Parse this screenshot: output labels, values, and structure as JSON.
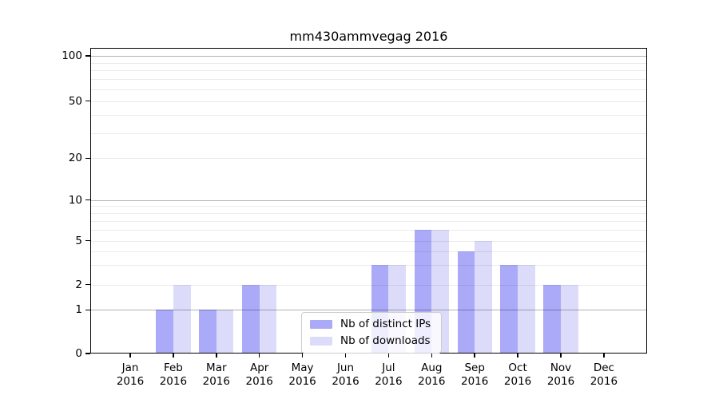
{
  "chart_data": {
    "type": "bar",
    "title": "mm430ammvegag 2016",
    "categories": [
      "Jan",
      "Feb",
      "Mar",
      "Apr",
      "May",
      "Jun",
      "Jul",
      "Aug",
      "Sep",
      "Oct",
      "Nov",
      "Dec"
    ],
    "x_tick_second_line": "2016",
    "series": [
      {
        "name": "Nb of distinct IPs",
        "color": "#aaaaf8",
        "values": [
          0,
          1,
          1,
          2,
          0,
          0,
          3,
          6,
          4,
          3,
          2,
          0
        ]
      },
      {
        "name": "Nb of downloads",
        "color": "#dcdcfa",
        "values": [
          0,
          2,
          1,
          2,
          0,
          0,
          3,
          6,
          5,
          3,
          2,
          0
        ]
      }
    ],
    "y_axis": {
      "scale": "log-like with linear 0-1 segment",
      "tick_labels": [
        "0",
        "1",
        "2",
        "5",
        "10",
        "20",
        "50",
        "100"
      ],
      "tick_values": [
        0,
        1,
        2,
        5,
        10,
        20,
        50,
        100
      ],
      "major_gridlines": [
        1,
        10,
        100
      ],
      "minor_gridlines": [
        2,
        3,
        4,
        5,
        6,
        7,
        8,
        9,
        20,
        30,
        40,
        50,
        60,
        70,
        80,
        90
      ],
      "ylim": [
        0,
        113
      ]
    },
    "legend": {
      "position": "lower center"
    },
    "grid": "on"
  },
  "style_colors": {
    "bar_distinct_ips": "#aaaaf8",
    "bar_downloads": "#dcdcfa",
    "major_grid": "#b3b3b3",
    "minor_grid": "#ebebeb",
    "axis": "#000000",
    "background": "#ffffff"
  }
}
